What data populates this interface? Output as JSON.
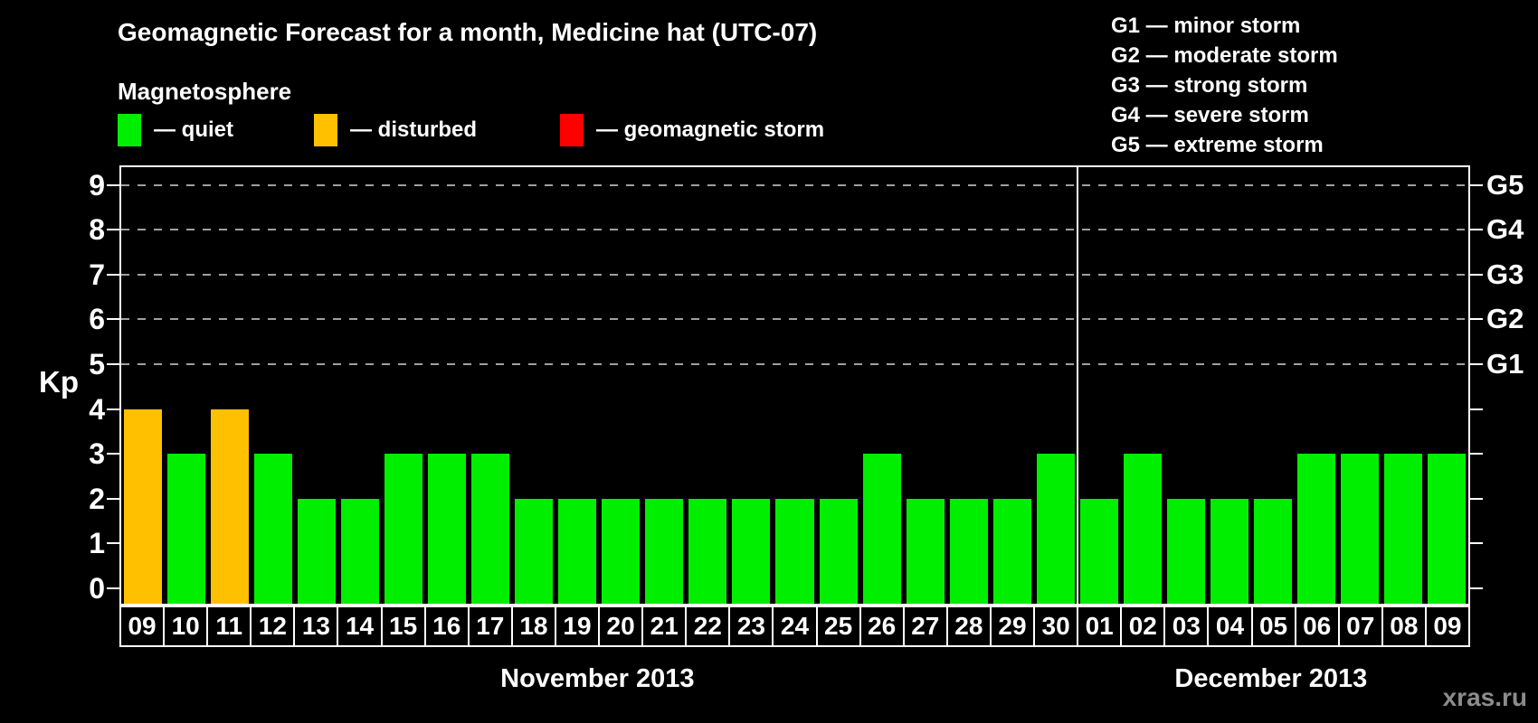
{
  "header": {
    "title": "Geomagnetic Forecast for a month, Medicine hat (UTC-07)",
    "subtitle": "Magnetosphere"
  },
  "magnetosphere_legend": [
    {
      "name": "quiet",
      "label": "— quiet",
      "color": "#00ee00"
    },
    {
      "name": "disturbed",
      "label": "— disturbed",
      "color": "#ffc000"
    },
    {
      "name": "storm",
      "label": "— geomagnetic storm",
      "color": "#ff0000"
    }
  ],
  "storm_scale_legend": [
    "G1 — minor storm",
    "G2 — moderate storm",
    "G3 — strong storm",
    "G4 — severe storm",
    "G5 — extreme storm"
  ],
  "chart_data": {
    "type": "bar",
    "title": "Geomagnetic Forecast for a month, Medicine hat (UTC-07)",
    "ylabel": "Kp",
    "ylim": [
      0,
      9
    ],
    "yticks": [
      0,
      1,
      2,
      3,
      4,
      5,
      6,
      7,
      8,
      9
    ],
    "gridlines_at": [
      5,
      6,
      7,
      8,
      9
    ],
    "grid": true,
    "legend_position": "top-left",
    "right_axis_labels": [
      {
        "label": "G1",
        "value": 5
      },
      {
        "label": "G2",
        "value": 6
      },
      {
        "label": "G3",
        "value": 7
      },
      {
        "label": "G4",
        "value": 8
      },
      {
        "label": "G5",
        "value": 9
      }
    ],
    "months": [
      {
        "label": "November 2013",
        "days": 22
      },
      {
        "label": "December 2013",
        "days": 9
      }
    ],
    "status_colors": {
      "quiet": "#00ee00",
      "disturbed": "#ffc000",
      "storm": "#ff0000"
    },
    "bars": [
      {
        "month": "November 2013",
        "day": "09",
        "kp": 4,
        "status": "disturbed"
      },
      {
        "month": "November 2013",
        "day": "10",
        "kp": 3,
        "status": "quiet"
      },
      {
        "month": "November 2013",
        "day": "11",
        "kp": 4,
        "status": "disturbed"
      },
      {
        "month": "November 2013",
        "day": "12",
        "kp": 3,
        "status": "quiet"
      },
      {
        "month": "November 2013",
        "day": "13",
        "kp": 2,
        "status": "quiet"
      },
      {
        "month": "November 2013",
        "day": "14",
        "kp": 2,
        "status": "quiet"
      },
      {
        "month": "November 2013",
        "day": "15",
        "kp": 3,
        "status": "quiet"
      },
      {
        "month": "November 2013",
        "day": "16",
        "kp": 3,
        "status": "quiet"
      },
      {
        "month": "November 2013",
        "day": "17",
        "kp": 3,
        "status": "quiet"
      },
      {
        "month": "November 2013",
        "day": "18",
        "kp": 2,
        "status": "quiet"
      },
      {
        "month": "November 2013",
        "day": "19",
        "kp": 2,
        "status": "quiet"
      },
      {
        "month": "November 2013",
        "day": "20",
        "kp": 2,
        "status": "quiet"
      },
      {
        "month": "November 2013",
        "day": "21",
        "kp": 2,
        "status": "quiet"
      },
      {
        "month": "November 2013",
        "day": "22",
        "kp": 2,
        "status": "quiet"
      },
      {
        "month": "November 2013",
        "day": "23",
        "kp": 2,
        "status": "quiet"
      },
      {
        "month": "November 2013",
        "day": "24",
        "kp": 2,
        "status": "quiet"
      },
      {
        "month": "November 2013",
        "day": "25",
        "kp": 2,
        "status": "quiet"
      },
      {
        "month": "November 2013",
        "day": "26",
        "kp": 3,
        "status": "quiet"
      },
      {
        "month": "November 2013",
        "day": "27",
        "kp": 2,
        "status": "quiet"
      },
      {
        "month": "November 2013",
        "day": "28",
        "kp": 2,
        "status": "quiet"
      },
      {
        "month": "November 2013",
        "day": "29",
        "kp": 2,
        "status": "quiet"
      },
      {
        "month": "November 2013",
        "day": "30",
        "kp": 3,
        "status": "quiet"
      },
      {
        "month": "December 2013",
        "day": "01",
        "kp": 2,
        "status": "quiet"
      },
      {
        "month": "December 2013",
        "day": "02",
        "kp": 3,
        "status": "quiet"
      },
      {
        "month": "December 2013",
        "day": "03",
        "kp": 2,
        "status": "quiet"
      },
      {
        "month": "December 2013",
        "day": "04",
        "kp": 2,
        "status": "quiet"
      },
      {
        "month": "December 2013",
        "day": "05",
        "kp": 2,
        "status": "quiet"
      },
      {
        "month": "December 2013",
        "day": "06",
        "kp": 3,
        "status": "quiet"
      },
      {
        "month": "December 2013",
        "day": "07",
        "kp": 3,
        "status": "quiet"
      },
      {
        "month": "December 2013",
        "day": "08",
        "kp": 3,
        "status": "quiet"
      },
      {
        "month": "December 2013",
        "day": "09",
        "kp": 3,
        "status": "quiet"
      }
    ]
  },
  "watermark": "xras.ru"
}
